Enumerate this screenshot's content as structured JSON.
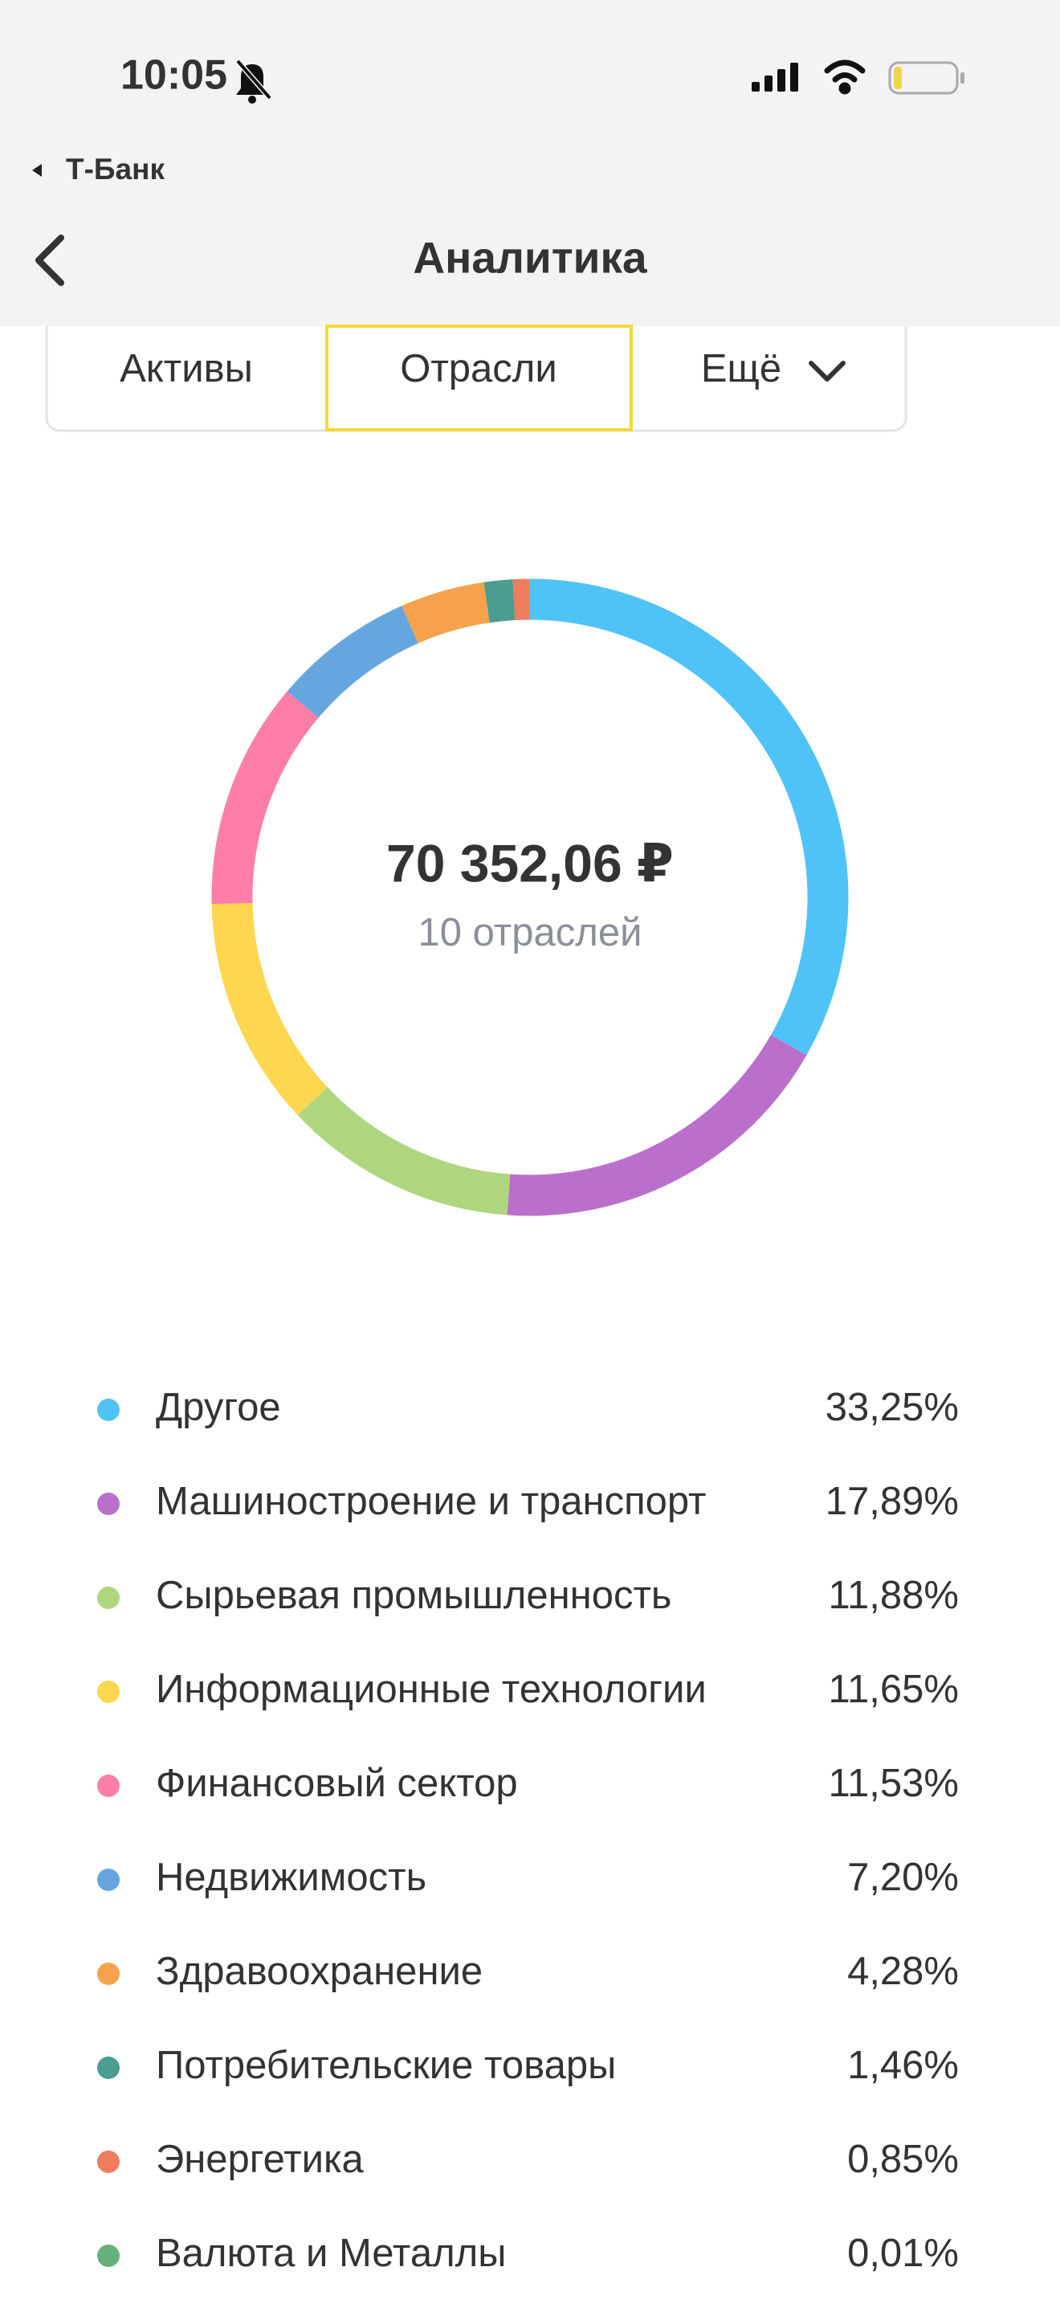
{
  "status_bar": {
    "time": "10:05",
    "back_app": "Т-Банк"
  },
  "nav": {
    "title": "Аналитика"
  },
  "tabs": [
    "Активы",
    "Отрасли",
    "Ещё"
  ],
  "chart_data": {
    "type": "donut",
    "center_value": "70 352,06 ₽",
    "center_subtitle": "10 отраслей",
    "categories": [
      "Другое",
      "Машиностроение и транспорт",
      "Сырьевая промышленность",
      "Информационные технологии",
      "Финансовый сектор",
      "Недвижимость",
      "Здравоохранение",
      "Потребительские товары",
      "Энергетика",
      "Валюта и Металлы"
    ],
    "values": [
      33.25,
      17.89,
      11.88,
      11.65,
      11.53,
      7.2,
      4.28,
      1.46,
      0.85,
      0.01
    ],
    "value_labels": [
      "33,25%",
      "17,89%",
      "11,88%",
      "11,65%",
      "11,53%",
      "7,20%",
      "4,28%",
      "1,46%",
      "0,85%",
      "0,01%"
    ],
    "colors": [
      "#4fc3f7",
      "#ba6fcb",
      "#aed67f",
      "#ffd64f",
      "#ff7ea7",
      "#66a6e0",
      "#f6a24c",
      "#4a9d8f",
      "#ef7c5c",
      "#67b27a"
    ]
  }
}
